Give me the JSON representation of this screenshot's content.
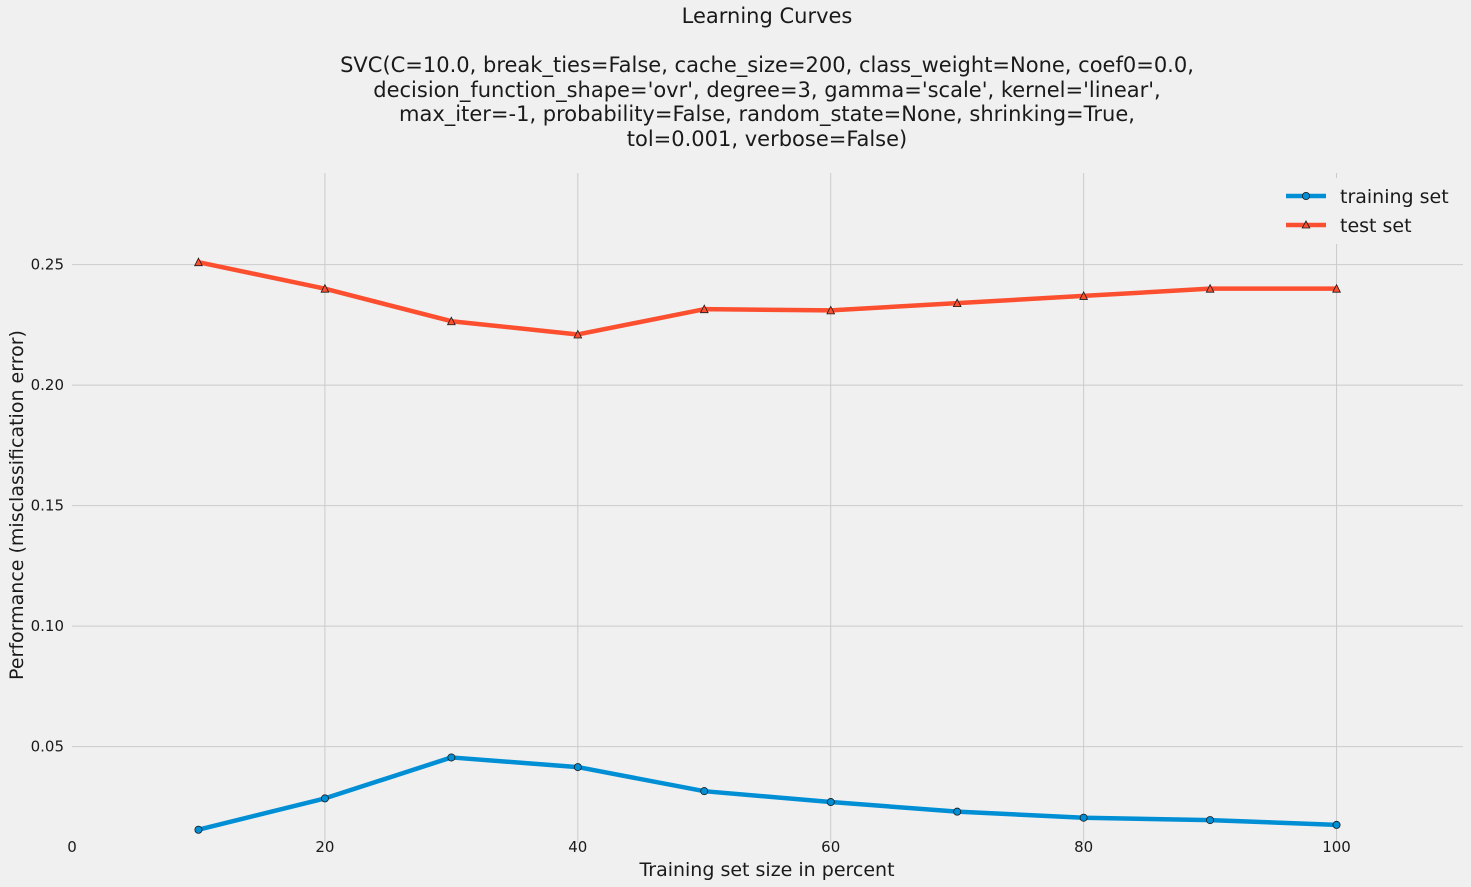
{
  "chart_data": {
    "type": "line",
    "title": "Learning Curves\n\nSVC(C=10.0, break_ties=False, cache_size=200, class_weight=None, coef0=0.0,\n    decision_function_shape='ovr', degree=3, gamma='scale', kernel='linear',\n    max_iter=-1, probability=False, random_state=None, shrinking=True,\n    tol=0.001, verbose=False)",
    "xlabel": "Training set size in percent",
    "ylabel": "Performance (misclassification error)",
    "xlim": [
      0,
      110
    ],
    "ylim": [
      0.01,
      0.288
    ],
    "xticks": [
      0,
      20,
      40,
      60,
      80,
      100
    ],
    "yticks": [
      0.05,
      0.1,
      0.15,
      0.2,
      0.25
    ],
    "xtick_labels": [
      "0",
      "20",
      "40",
      "60",
      "80",
      "100"
    ],
    "ytick_labels": [
      "0.05",
      "0.10",
      "0.15",
      "0.20",
      "0.25"
    ],
    "grid": true,
    "legend_position": "top-right",
    "x": [
      10,
      20,
      30,
      40,
      50,
      60,
      70,
      80,
      90,
      100
    ],
    "series": [
      {
        "name": "training set",
        "color": "#008fd5",
        "marker": "circle",
        "values": [
          0.0155,
          0.0285,
          0.0455,
          0.0415,
          0.0315,
          0.027,
          0.023,
          0.0205,
          0.0195,
          0.0175
        ]
      },
      {
        "name": "test set",
        "color": "#fc4f30",
        "marker": "triangle",
        "values": [
          0.251,
          0.24,
          0.2265,
          0.221,
          0.2315,
          0.231,
          0.234,
          0.237,
          0.24,
          0.24
        ]
      }
    ]
  }
}
